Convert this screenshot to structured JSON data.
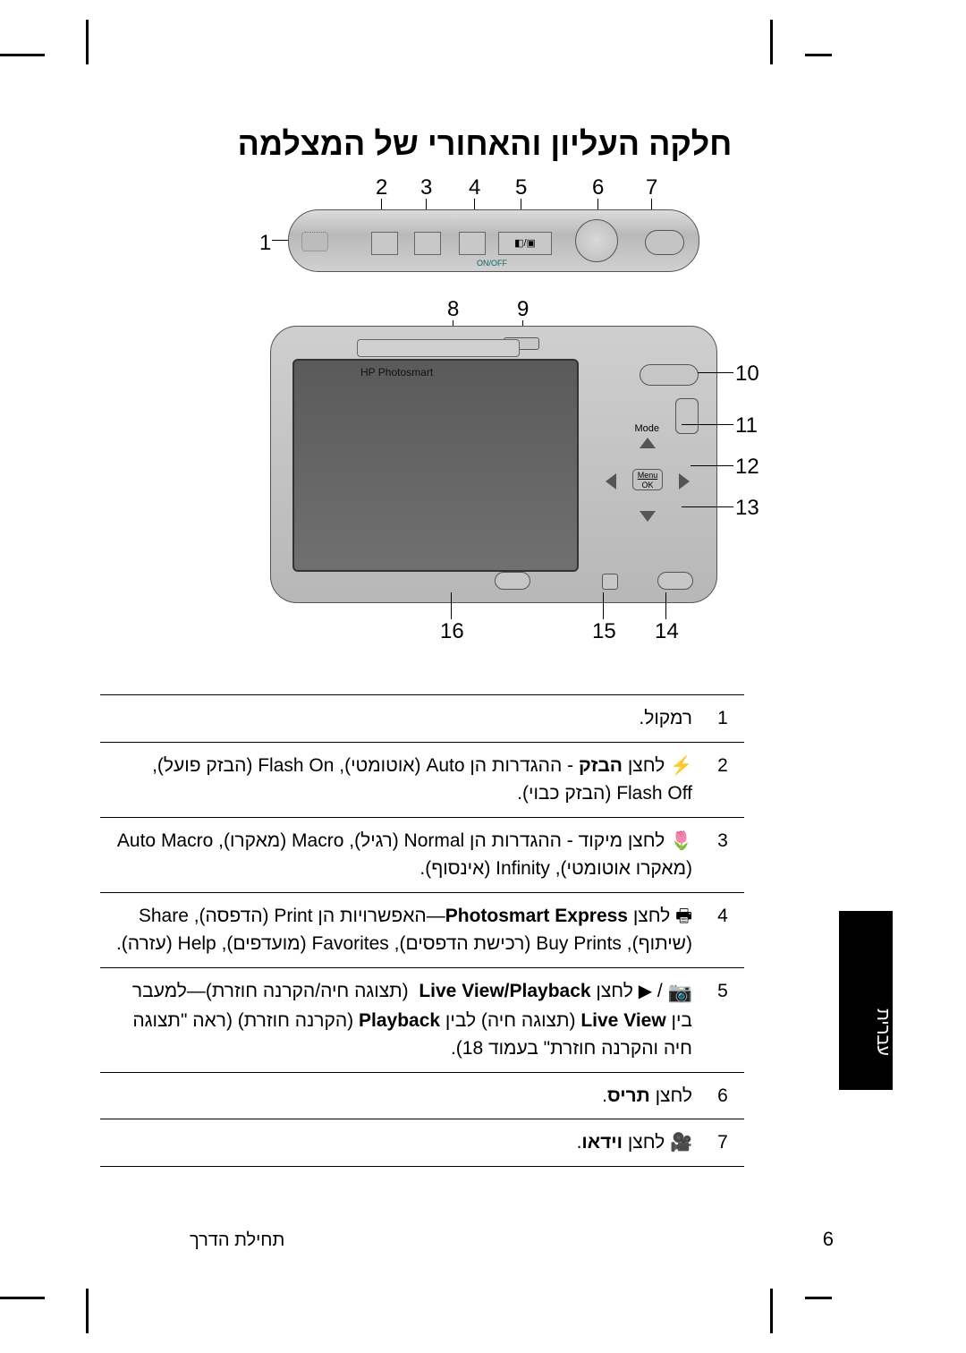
{
  "title": "חלקה העליון והאחורי של המצלמה",
  "brand": "HP Photosmart",
  "onoff": "ON/OFF",
  "menuok": "Menu\nOK",
  "mode": "Mode",
  "sidetab": "עברית",
  "pagenum": "6",
  "footer": "תחילת הדרך",
  "callouts_top": [
    "1",
    "2",
    "3",
    "4",
    "5",
    "6",
    "7"
  ],
  "callouts_mid": [
    "8",
    "9"
  ],
  "callouts_right": [
    "10",
    "11",
    "12",
    "13"
  ],
  "callouts_bot": [
    "16",
    "15",
    "14"
  ],
  "rows": [
    {
      "n": "1",
      "html": "רמקול."
    },
    {
      "n": "2",
      "html": "<span class='icon'>⚡</span> לחצן <b>הבזק</b> - ההגדרות הן Auto (אוטומטי), Flash On (הבזק פועל), Flash Off (הבזק כבוי)."
    },
    {
      "n": "3",
      "html": "<span class='icon'>🌷</span> לחצן מיקוד - ההגדרות הן Normal (רגיל), Macro (מאקרו), Auto Macro (מאקרו אוטומטי), Infinity (אינסוף)."
    },
    {
      "n": "4",
      "html": "<span class='icon'>🖶</span> לחצן <b>Photosmart Express</b>—האפשרויות הן Print (הדפסה), Share (שיתוף), Buy Prints (רכישת הדפסים), Favorites (מועדפים), Help (עזרה)."
    },
    {
      "n": "5",
      "html": "<span class='icon' style='font-size:22px'>📷</span> / <span class='icon'>▶</span> לחצן <b>Live View/Playback</b> &nbsp;(תצוגה חיה/הקרנה חוזרת)—למעבר בין <b>Live View</b> (תצוגה חיה) לבין <b>Playback</b> (הקרנה חוזרת) (ראה \"תצוגה חיה והקרנה חוזרת\" בעמוד 18)."
    },
    {
      "n": "6",
      "html": "לחצן <b>תריס</b>."
    },
    {
      "n": "7",
      "html": "<span class='icon'>🎥</span> לחצן <b>וידאו</b>."
    }
  ],
  "colors": {
    "ink": "#000000",
    "metal1": "#dcdcdc",
    "metal2": "#b9b9b9",
    "screen": "#606060"
  }
}
